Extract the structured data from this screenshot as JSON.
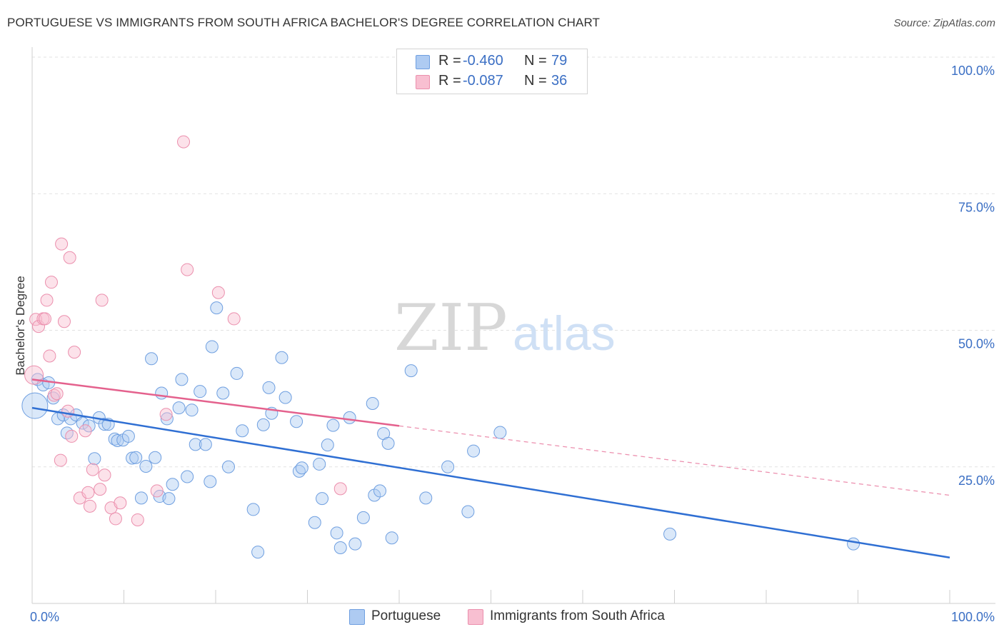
{
  "title": "PORTUGUESE VS IMMIGRANTS FROM SOUTH AFRICA BACHELOR'S DEGREE CORRELATION CHART",
  "source": "Source: ZipAtlas.com",
  "watermark": {
    "zip": "ZIP",
    "atlas": "atlas"
  },
  "legend": {
    "r_label": "R =",
    "n_label": "N =",
    "series": [
      {
        "name": "Portuguese",
        "r": "-0.460",
        "n": "79",
        "fill": "#aecbf2",
        "stroke": "#6f9fe0"
      },
      {
        "name": "Immigrants from South Africa",
        "r": "-0.087",
        "n": "36",
        "fill": "#f8bfd1",
        "stroke": "#eb8fad"
      }
    ]
  },
  "chart_data": {
    "type": "scatter",
    "title": "PORTUGUESE VS IMMIGRANTS FROM SOUTH AFRICA BACHELOR'S DEGREE CORRELATION CHART",
    "xlabel": "",
    "ylabel": "Bachelor's Degree",
    "xlim": [
      0,
      100
    ],
    "ylim": [
      0,
      100
    ],
    "x_tick_labels": [
      {
        "value": 0,
        "label": "0.0%"
      },
      {
        "value": 100,
        "label": "100.0%"
      }
    ],
    "y_tick_labels": [
      {
        "value": 25,
        "label": "25.0%"
      },
      {
        "value": 50,
        "label": "50.0%"
      },
      {
        "value": 75,
        "label": "75.0%"
      },
      {
        "value": 100,
        "label": "100.0%"
      }
    ],
    "grid": true,
    "legend_position": "top-center",
    "colors": {
      "portuguese_line": "#2f6fd3",
      "south_africa_line": "#e4618d",
      "tick_label": "#3b6fc4",
      "grid": "#e2e2e2"
    },
    "series": [
      {
        "name": "Portuguese",
        "color": "#6f9fe0",
        "trend": {
          "x": [
            0,
            100
          ],
          "y": [
            35.8,
            8.4
          ]
        },
        "points": [
          [
            0.3,
            36.2
          ],
          [
            0.6,
            41
          ],
          [
            1.2,
            40
          ],
          [
            1.8,
            40.4
          ],
          [
            2.3,
            37.6
          ],
          [
            2.8,
            33.8
          ],
          [
            3.4,
            34.5
          ],
          [
            3.8,
            31.2
          ],
          [
            4.2,
            33.8
          ],
          [
            4.8,
            34.5
          ],
          [
            5.5,
            33
          ],
          [
            6.2,
            32.5
          ],
          [
            6.8,
            26.5
          ],
          [
            7.3,
            34
          ],
          [
            7.9,
            32.8
          ],
          [
            8.3,
            32.8
          ],
          [
            9,
            30.1
          ],
          [
            9.3,
            29.8
          ],
          [
            9.9,
            29.9
          ],
          [
            10.5,
            30.6
          ],
          [
            10.9,
            26.6
          ],
          [
            11.3,
            26.7
          ],
          [
            11.9,
            19.3
          ],
          [
            12.4,
            25.1
          ],
          [
            13,
            44.8
          ],
          [
            13.4,
            26.7
          ],
          [
            13.9,
            19.6
          ],
          [
            14.1,
            38.5
          ],
          [
            14.7,
            33.8
          ],
          [
            14.9,
            19.2
          ],
          [
            15.3,
            21.8
          ],
          [
            16,
            35.8
          ],
          [
            16.3,
            41
          ],
          [
            16.9,
            23.2
          ],
          [
            17.4,
            35.4
          ],
          [
            17.8,
            29.1
          ],
          [
            18.3,
            38.8
          ],
          [
            18.9,
            29.1
          ],
          [
            19.4,
            22.3
          ],
          [
            19.6,
            47
          ],
          [
            20.1,
            54.1
          ],
          [
            20.8,
            38.5
          ],
          [
            21.4,
            25
          ],
          [
            22.3,
            42.1
          ],
          [
            22.9,
            31.6
          ],
          [
            24.1,
            17.2
          ],
          [
            24.6,
            9.4
          ],
          [
            25.2,
            32.7
          ],
          [
            25.8,
            39.5
          ],
          [
            26.1,
            34.8
          ],
          [
            27.2,
            45
          ],
          [
            27.6,
            37.7
          ],
          [
            28.8,
            33.3
          ],
          [
            29.1,
            24.2
          ],
          [
            29.4,
            24.8
          ],
          [
            30.8,
            14.8
          ],
          [
            31.3,
            25.5
          ],
          [
            31.6,
            19.2
          ],
          [
            32.2,
            29
          ],
          [
            32.8,
            32.6
          ],
          [
            33.2,
            12.9
          ],
          [
            33.6,
            10.2
          ],
          [
            34.6,
            34
          ],
          [
            35.2,
            10.9
          ],
          [
            36.1,
            15.7
          ],
          [
            37.1,
            36.6
          ],
          [
            37.3,
            19.8
          ],
          [
            37.9,
            20.6
          ],
          [
            38.3,
            31.1
          ],
          [
            38.8,
            29.3
          ],
          [
            39.2,
            12
          ],
          [
            41.3,
            42.6
          ],
          [
            42.9,
            19.3
          ],
          [
            45.3,
            25
          ],
          [
            47.5,
            16.8
          ],
          [
            48.1,
            27.9
          ],
          [
            51,
            31.3
          ],
          [
            69.5,
            12.7
          ],
          [
            89.5,
            10.9
          ]
        ]
      },
      {
        "name": "Immigrants from South Africa",
        "color": "#eb8fad",
        "trend": {
          "x": [
            0,
            40
          ],
          "y": [
            41.0,
            32.5
          ]
        },
        "trend_extension": {
          "x": [
            40,
            100
          ],
          "y": [
            32.5,
            19.8
          ]
        },
        "points": [
          [
            0.2,
            41.8
          ],
          [
            0.4,
            52
          ],
          [
            0.7,
            50.7
          ],
          [
            1.2,
            52.1
          ],
          [
            1.4,
            52.1
          ],
          [
            1.6,
            55.5
          ],
          [
            1.9,
            45.3
          ],
          [
            2.1,
            58.8
          ],
          [
            2.4,
            38.1
          ],
          [
            2.7,
            38.4
          ],
          [
            3.1,
            26.2
          ],
          [
            3.2,
            65.8
          ],
          [
            3.5,
            51.6
          ],
          [
            3.9,
            35.2
          ],
          [
            4.1,
            63.3
          ],
          [
            4.3,
            30.6
          ],
          [
            4.6,
            46
          ],
          [
            5.2,
            19.3
          ],
          [
            5.8,
            31.6
          ],
          [
            6.1,
            20.3
          ],
          [
            6.3,
            17.8
          ],
          [
            6.6,
            24.5
          ],
          [
            7.4,
            20.9
          ],
          [
            7.6,
            55.5
          ],
          [
            7.9,
            23.5
          ],
          [
            8.6,
            17.5
          ],
          [
            9.1,
            15.5
          ],
          [
            9.6,
            18.4
          ],
          [
            11.5,
            15.3
          ],
          [
            13.6,
            20.6
          ],
          [
            14.6,
            34.6
          ],
          [
            16.5,
            84.5
          ],
          [
            16.9,
            61.1
          ],
          [
            20.3,
            56.9
          ],
          [
            22,
            52.1
          ],
          [
            33.6,
            21
          ]
        ]
      }
    ]
  }
}
